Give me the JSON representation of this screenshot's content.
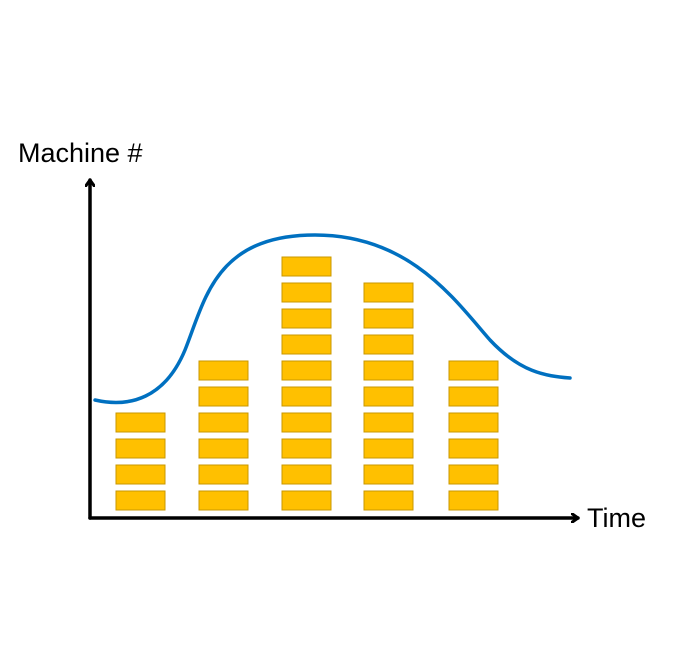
{
  "diagram": {
    "y_axis_label": "Machine #",
    "x_axis_label": "Time"
  },
  "blocks": {
    "columns": [
      {
        "machines": 4
      },
      {
        "machines": 6
      },
      {
        "machines": 10
      },
      {
        "machines": 9
      },
      {
        "machines": 6
      }
    ]
  },
  "colors": {
    "axis": "#000000",
    "curve": "#0070c0",
    "block_fill": "#ffc000",
    "block_stroke": "#c99700"
  }
}
